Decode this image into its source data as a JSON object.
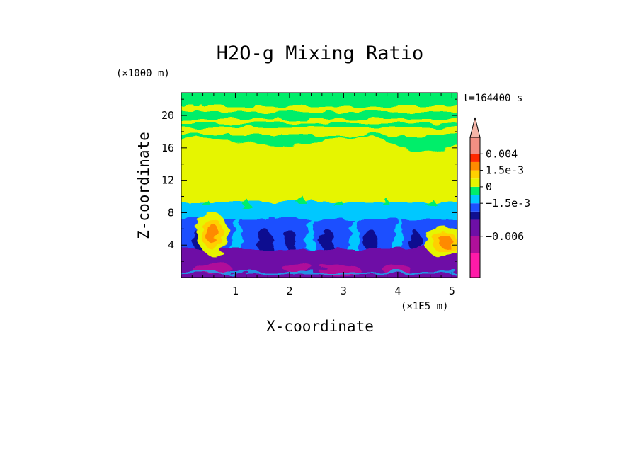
{
  "chart_data": {
    "type": "heatmap",
    "title": "H2O-g Mixing Ratio",
    "xlabel": "X-coordinate",
    "ylabel": "Z-coordinate",
    "x_unit": "(×1E5 m)",
    "y_unit": "(×1000 m)",
    "time_label": "t=164400 s",
    "xlim": [
      0,
      5.1
    ],
    "ylim": [
      0,
      22.8
    ],
    "x_ticks": [
      1,
      2,
      3,
      4,
      5
    ],
    "y_ticks": [
      4,
      8,
      12,
      16,
      20
    ],
    "colorbar": {
      "colors": [
        "#ff1aa8",
        "#b0109a",
        "#6e0fa6",
        "#101090",
        "#1e50ff",
        "#00c8ff",
        "#00ee6a",
        "#e6f500",
        "#ffd000",
        "#ff8a00",
        "#ff2a00",
        "#f28f83",
        "#f6b5a8"
      ],
      "labels": [
        "0.004",
        "1.5e-3",
        "0",
        "−1.5e-3",
        "−0.006"
      ],
      "extend": "max"
    },
    "field_bands": [
      {
        "z": [
          0,
          3
        ],
        "value": "−0.006",
        "color": "#6e0fa6"
      },
      {
        "z": [
          3,
          7
        ],
        "value": "−1.5e-3 .. −0.006",
        "color": "#1e50ff"
      },
      {
        "z": [
          7,
          8.5
        ],
        "value": "0",
        "color": "#00ee6a"
      },
      {
        "z": [
          8.5,
          16
        ],
        "value": "> 0",
        "color": "#e6f500"
      },
      {
        "z": [
          16,
          22.8
        ],
        "value": "0",
        "color": "#00ee6a"
      }
    ],
    "hotspots": [
      {
        "x": 0.6,
        "z": 4.5,
        "value": "1.5e-3",
        "color": "#ff8a00"
      },
      {
        "x": 4.9,
        "z": 4.2,
        "value": "1.5e-3",
        "color": "#ff8a00"
      }
    ]
  }
}
